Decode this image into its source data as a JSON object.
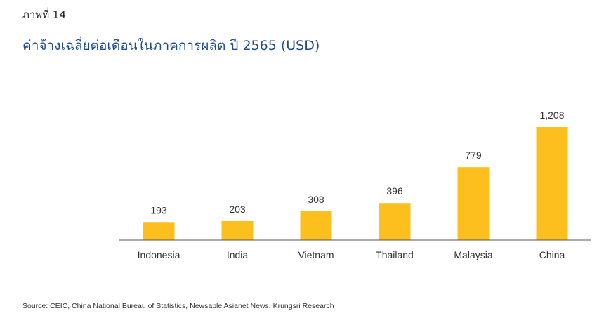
{
  "figure_label": "ภาพที่ 14",
  "title": "ค่าจ้างเฉลี่ยต่อเดือนในภาคการผลิต ปี 2565 (USD)",
  "source": "Source: CEIC, China National Bureau of Statistics, Newsable Asianet News, Krungsri Research",
  "colors": {
    "bar": "#FDBF1E",
    "title": "#1f4e8c",
    "axis": "#555555"
  },
  "chart_data": {
    "type": "bar",
    "title": "ค่าจ้างเฉลี่ยต่อเดือนในภาคการผลิต ปี 2565 (USD)",
    "categories": [
      "Indonesia",
      "India",
      "Vietnam",
      "Thailand",
      "Malaysia",
      "China"
    ],
    "values": [
      193,
      203,
      308,
      396,
      779,
      1208
    ],
    "value_labels": [
      "193",
      "203",
      "308",
      "396",
      "779",
      "1,208"
    ],
    "xlabel": "",
    "ylabel": "",
    "ylim": [
      0,
      1208
    ],
    "grid": false,
    "legend": "none"
  }
}
